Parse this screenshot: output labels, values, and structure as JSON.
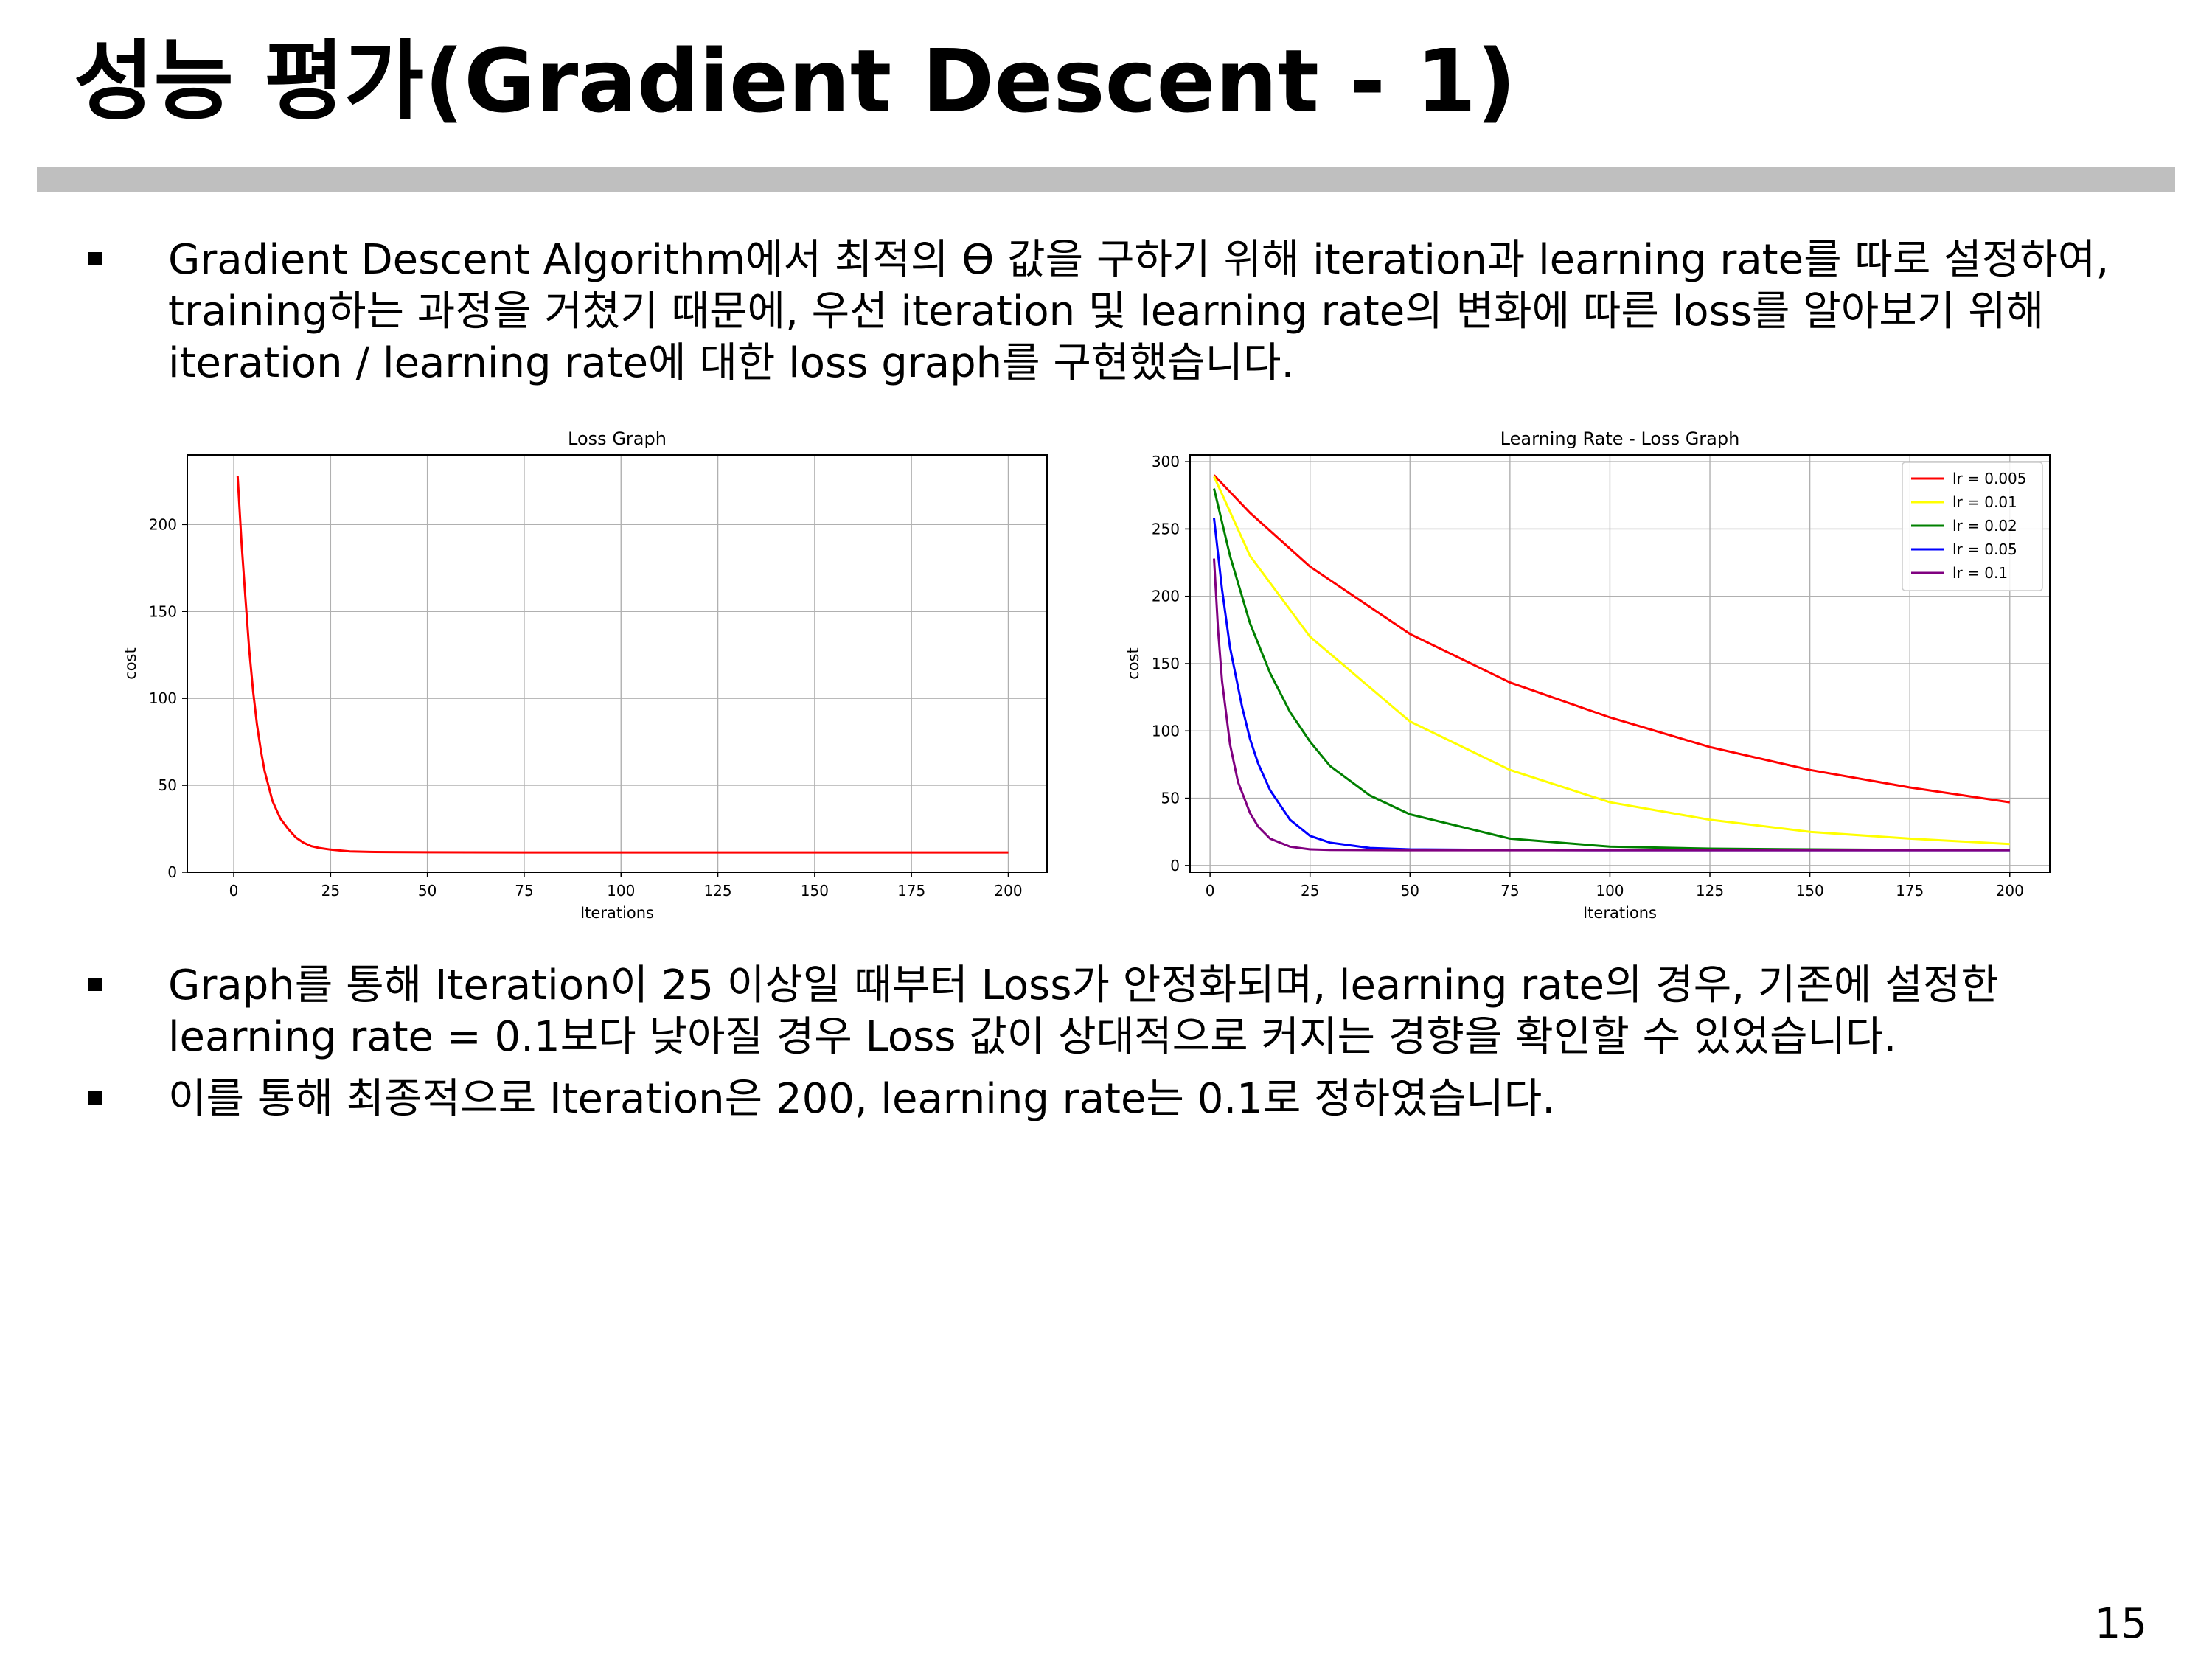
{
  "title": "성능 평가(Gradient Descent - 1)",
  "bullets_top": [
    "Gradient Descent Algorithm에서 최적의 ϴ 값을 구하기 위해 iteration과 learning rate를 따로 설정하여, training하는 과정을 거쳤기 때문에, 우선 iteration 및 learning rate의 변화에 따른 loss를 알아보기 위해 iteration / learning rate에 대한 loss graph를 구현했습니다."
  ],
  "bullets_bottom": [
    "Graph를 통해 Iteration이 25 이상일 때부터 Loss가 안정화되며, learning rate의 경우, 기존에 설정한 learning rate = 0.1보다 낮아질 경우 Loss 값이 상대적으로 커지는 경향을 확인할 수 있었습니다.",
    "이를 통해 최종적으로 Iteration은 200, learning rate는 0.1로 정하였습니다."
  ],
  "page_number": "15",
  "chart_data": [
    {
      "type": "line",
      "title": "Loss Graph",
      "xlabel": "Iterations",
      "ylabel": "cost",
      "xlim": [
        -12,
        210
      ],
      "ylim": [
        0,
        240
      ],
      "xticks": [
        0,
        25,
        50,
        75,
        100,
        125,
        150,
        175,
        200
      ],
      "yticks": [
        0,
        50,
        100,
        150,
        200
      ],
      "grid": true,
      "series": [
        {
          "color": "#ff0000",
          "x": [
            1,
            2,
            3,
            4,
            5,
            6,
            7,
            8,
            10,
            12,
            14,
            16,
            18,
            20,
            22,
            25,
            30,
            35,
            40,
            50,
            75,
            100,
            125,
            150,
            175,
            200
          ],
          "y": [
            228,
            190,
            158,
            128,
            104,
            85,
            70,
            58,
            41,
            31,
            25,
            20,
            17,
            15,
            14,
            13,
            12,
            11.7,
            11.6,
            11.5,
            11.4,
            11.4,
            11.4,
            11.4,
            11.4,
            11.4
          ]
        }
      ]
    },
    {
      "type": "line",
      "title": "Learning Rate - Loss Graph",
      "xlabel": "Iterations",
      "ylabel": "cost",
      "xlim": [
        -5,
        210
      ],
      "ylim": [
        -5,
        305
      ],
      "xticks": [
        0,
        25,
        50,
        75,
        100,
        125,
        150,
        175,
        200
      ],
      "yticks": [
        0,
        50,
        100,
        150,
        200,
        250,
        300
      ],
      "grid": true,
      "legend": "top-right",
      "series": [
        {
          "name": "lr = 0.005",
          "color": "#ff0000",
          "x": [
            1,
            10,
            25,
            50,
            75,
            100,
            125,
            150,
            175,
            200
          ],
          "y": [
            290,
            262,
            222,
            172,
            136,
            110,
            88,
            71,
            58,
            47
          ]
        },
        {
          "name": "lr = 0.01",
          "color": "#ffff00",
          "x": [
            1,
            10,
            25,
            50,
            75,
            100,
            125,
            150,
            175,
            200
          ],
          "y": [
            289,
            230,
            170,
            107,
            71,
            47,
            34,
            25,
            20,
            16
          ]
        },
        {
          "name": "lr = 0.02",
          "color": "#008000",
          "x": [
            1,
            5,
            10,
            15,
            20,
            25,
            30,
            40,
            50,
            75,
            100,
            125,
            150,
            175,
            200
          ],
          "y": [
            280,
            230,
            180,
            143,
            114,
            92,
            74,
            52,
            38,
            20,
            14,
            12.5,
            12,
            11.6,
            11.5
          ]
        },
        {
          "name": "lr = 0.05",
          "color": "#0000ff",
          "x": [
            1,
            3,
            5,
            8,
            10,
            12,
            15,
            20,
            25,
            30,
            40,
            50,
            75,
            100,
            150,
            200
          ],
          "y": [
            258,
            205,
            162,
            118,
            94,
            76,
            56,
            34,
            22,
            17,
            13,
            12,
            11.5,
            11.4,
            11.4,
            11.4
          ]
        },
        {
          "name": "lr = 0.1",
          "color": "#800080",
          "x": [
            1,
            2,
            3,
            5,
            7,
            10,
            12,
            15,
            20,
            25,
            30,
            50,
            100,
            150,
            200
          ],
          "y": [
            228,
            175,
            137,
            90,
            62,
            39,
            29,
            20,
            14,
            12,
            11.6,
            11.4,
            11.4,
            11.4,
            11.4
          ]
        }
      ]
    }
  ]
}
